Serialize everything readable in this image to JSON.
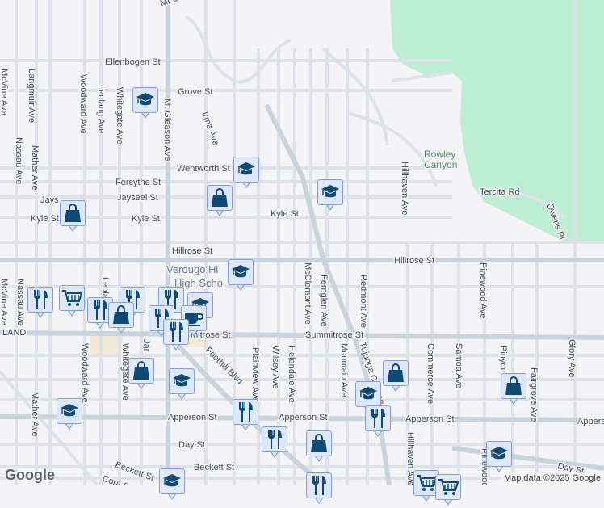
{
  "streets": {
    "mt_gleason_top": "Mt G",
    "ellenbogen": "Ellenbogen St",
    "grove": "Grove St",
    "irma": "Irma Ave",
    "wentworth": "Wentworth St",
    "forsythe": "Forsythe St",
    "jaysee_left": "Jays",
    "jayseel": "Jayseel St",
    "kyle_left": "Kyle St",
    "kyle_mid": "Kyle St",
    "kyle_right": "Kyle St",
    "hillrose": "Hillrose St",
    "hillrose_right": "Hillrose St",
    "summitrose_left": "mitrose St",
    "summitrose": "Summitrose St",
    "apperson_left": "Apperson St",
    "apperson_mid": "Apperson St",
    "apperson_right": "Apperson St",
    "apperson_edge": "Appers",
    "day_left": "Day St",
    "day_right": "Day St",
    "beckett_left": "Beckett St",
    "beckett": "Beckett St",
    "cora": "Cora St",
    "mcvine": "McVine Ave",
    "mcvine_lower": "McVine Ave",
    "langmuir": "Langmuir Ave",
    "nassau": "Nassau Ave",
    "nassau_lower": "Nassau Ave",
    "mather": "Mather Ave",
    "mather_lower": "Mather Ave",
    "woodward": "Woodward Ave",
    "woodward_lower": "Woodward Ave",
    "leolang": "Leolang Ave",
    "leolang_lower": "Leola",
    "whitegate": "Whitegate Ave",
    "whitegate_lower": "Whitegate Ave",
    "mt_gleason": "Mt Gleason Ave",
    "plainview": "Plainview Ave",
    "wilsey": "Wilsey Ave",
    "helendale": "Helendale Ave",
    "mcclemont": "McClemont Ave",
    "fernglen": "Fernglen Ave",
    "mountain": "Mountain Ave",
    "redmont": "Redmont Ave",
    "tujunga": "Tujunga Canyon Blvd",
    "foothill": "Foothill Blvd",
    "hillhaven": "Hillhaven Ave",
    "hillhaven_lower": "Hillhaven Ave",
    "commerce": "Commerce Ave",
    "samoa": "Samoa Ave",
    "pinewood": "Pinewood Ave",
    "pinewood_lower": "Pinewood Ave",
    "pinyon": "Pinyon",
    "fairgrove": "Fairgrove Ave",
    "glory": "Glory Ave",
    "tercita": "Tercita Rd",
    "owens": "Owens Pl",
    "land": "LAND",
    "jar": "Jar"
  },
  "places": {
    "verdugo_1": "Verdugo Hi",
    "verdugo_2": "High Scho",
    "rowley_1": "Rowley",
    "rowley_2": "Canyon"
  },
  "markers": [
    {
      "type": "school"
    },
    {
      "type": "school"
    },
    {
      "type": "shop"
    },
    {
      "type": "shop"
    },
    {
      "type": "school"
    },
    {
      "type": "school"
    },
    {
      "type": "restaurant"
    },
    {
      "type": "grocery"
    },
    {
      "type": "restaurant"
    },
    {
      "type": "restaurant"
    },
    {
      "type": "shop"
    },
    {
      "type": "restaurant"
    },
    {
      "type": "school"
    },
    {
      "type": "cafe"
    },
    {
      "type": "restaurant"
    },
    {
      "type": "restaurant"
    },
    {
      "type": "shop"
    },
    {
      "type": "school"
    },
    {
      "type": "school"
    },
    {
      "type": "shop"
    },
    {
      "type": "shop"
    },
    {
      "type": "school"
    },
    {
      "type": "restaurant"
    },
    {
      "type": "restaurant"
    },
    {
      "type": "restaurant"
    },
    {
      "type": "shop"
    },
    {
      "type": "school"
    },
    {
      "type": "school"
    },
    {
      "type": "restaurant"
    },
    {
      "type": "grocery"
    },
    {
      "type": "grocery"
    }
  ],
  "colors": {
    "background": "#f4f3f5",
    "road": "#dde2e8",
    "major_road": "#c9d3de",
    "park": "#bdeed2",
    "marker_fill": "#dfe8fb",
    "marker_border": "#7ea0e0",
    "icon": "#0e4a74"
  },
  "branding": {
    "logo": "Google",
    "attribution": "Map data ©2025 Google"
  }
}
